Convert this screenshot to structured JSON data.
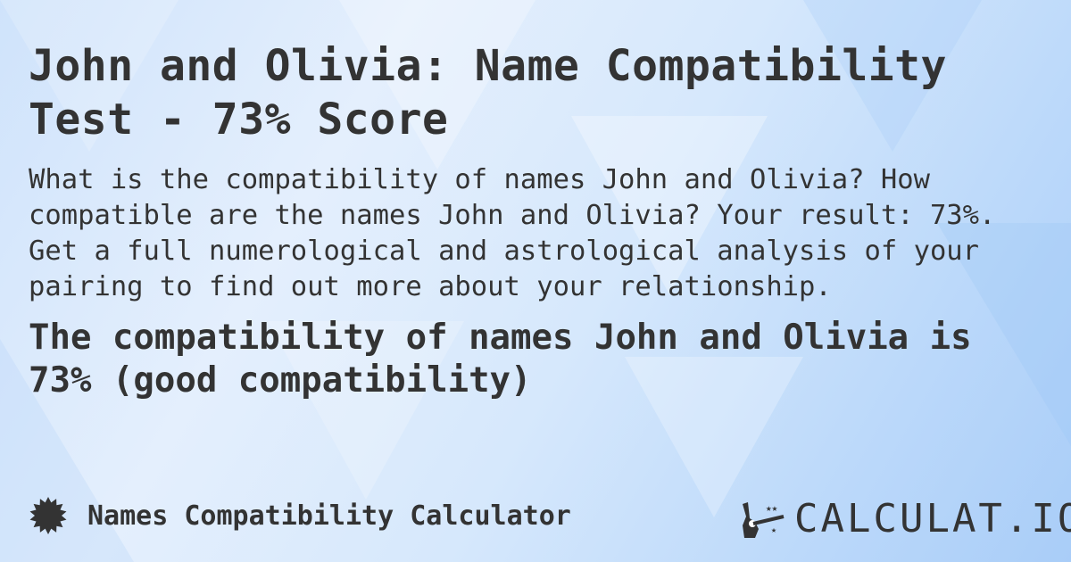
{
  "title": "John and Olivia: Name Compatibility Test - 73% Score",
  "description": "What is the compatibility of names John and Olivia? How compatible are the names John and Olivia? Your result: 73%. Get a full numerological and astrological analysis of your pairing to find out more about your relationship.",
  "result": "The compatibility of names John and Olivia is 73% (good compatibility)",
  "footer": {
    "calculator_name": "Names Compatibility Calculator",
    "icon": "badge-star-icon"
  },
  "logo": {
    "text": "CALCULAT.IO",
    "icon": "magic-wand-hand-icon"
  },
  "colors": {
    "text": "#333333",
    "background": "#cfe3fb"
  }
}
